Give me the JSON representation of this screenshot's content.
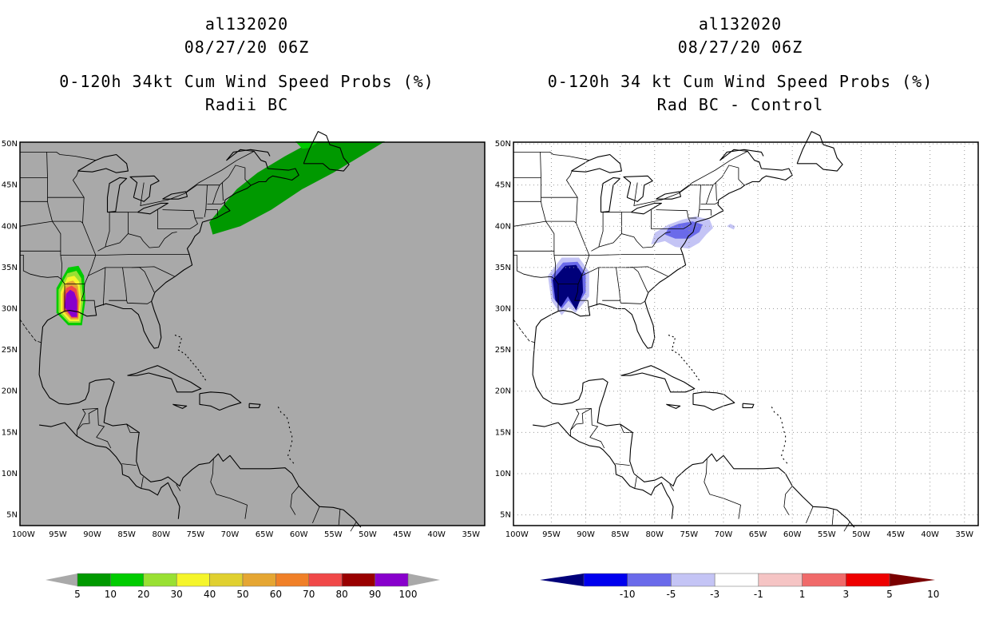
{
  "left_panel": {
    "storm_id": "al132020",
    "date": "08/27/20 06Z",
    "title_line1": "0-120h 34kt Cum Wind Speed Probs (%)",
    "title_line2": "Radii BC",
    "background_color": "#a9a9a9",
    "colorbar": {
      "labels": [
        "5",
        "10",
        "20",
        "30",
        "40",
        "50",
        "60",
        "70",
        "80",
        "90",
        "100"
      ],
      "colors": [
        "#009900",
        "#00cc00",
        "#99e033",
        "#f5f52b",
        "#e0d030",
        "#e5a633",
        "#f08028",
        "#f04848",
        "#990000",
        "#8800cc"
      ]
    }
  },
  "right_panel": {
    "storm_id": "al132020",
    "date": "08/27/20 06Z",
    "title_line1": "0-120h 34 kt Cum Wind Speed Probs (%)",
    "title_line2": "Rad BC - Control",
    "background_color": "#ffffff",
    "colorbar": {
      "labels": [
        "-10",
        "-5",
        "-3",
        "-1",
        "1",
        "3",
        "5",
        "10"
      ],
      "colors": [
        "#00007a",
        "#0000ee",
        "#6a6aea",
        "#c4c4f5",
        "#ffffff",
        "#f5c4c4",
        "#f06a6a",
        "#ee0000",
        "#7a0000"
      ]
    }
  },
  "map": {
    "lat_labels": [
      "50N",
      "45N",
      "40N",
      "35N",
      "30N",
      "25N",
      "20N",
      "15N",
      "10N",
      "5N"
    ],
    "lon_labels": [
      "100W",
      "95W",
      "90W",
      "85W",
      "80W",
      "75W",
      "70W",
      "65W",
      "60W",
      "55W",
      "50W",
      "45W",
      "40W",
      "35W"
    ]
  }
}
